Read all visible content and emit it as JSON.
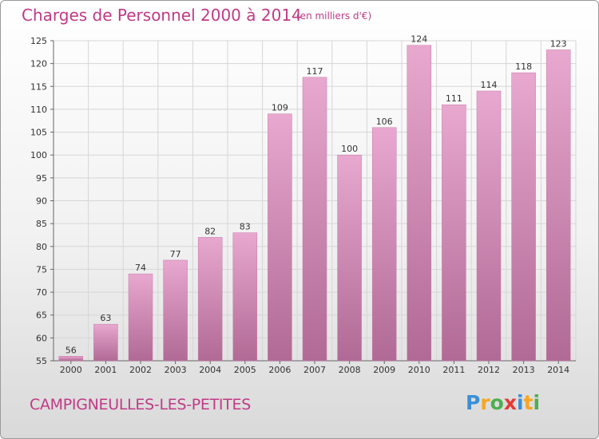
{
  "title": "Charges de Personnel 2000 à 2014",
  "subtitle": "(en milliers d'€)",
  "commune": "CAMPIGNEULLES-LES-PETITES",
  "logo": {
    "text": "Proxiti",
    "letters": [
      {
        "char": "P",
        "color": "#3a8fd8"
      },
      {
        "char": "r",
        "color": "#f5a623"
      },
      {
        "char": "o",
        "color": "#4caf50"
      },
      {
        "char": "x",
        "color": "#e53935"
      },
      {
        "char": "i",
        "color": "#3a8fd8"
      },
      {
        "char": "t",
        "color": "#f5a623"
      },
      {
        "char": "i",
        "color": "#4caf50"
      }
    ]
  },
  "colors": {
    "title": "#c03a86",
    "bar_light": "#e8a8cf",
    "bar_dark": "#b06a95",
    "grid": "#d6d6d6"
  },
  "chart_data": {
    "type": "bar",
    "categories": [
      "2000",
      "2001",
      "2002",
      "2003",
      "2004",
      "2005",
      "2006",
      "2007",
      "2008",
      "2009",
      "2010",
      "2011",
      "2012",
      "2013",
      "2014"
    ],
    "values": [
      56,
      63,
      74,
      77,
      82,
      83,
      109,
      117,
      100,
      106,
      124,
      111,
      114,
      118,
      123
    ],
    "ylim": [
      55,
      125
    ],
    "yticks": [
      55,
      60,
      65,
      70,
      75,
      80,
      85,
      90,
      95,
      100,
      105,
      110,
      115,
      120,
      125
    ],
    "grid": true,
    "data_labels": true
  }
}
